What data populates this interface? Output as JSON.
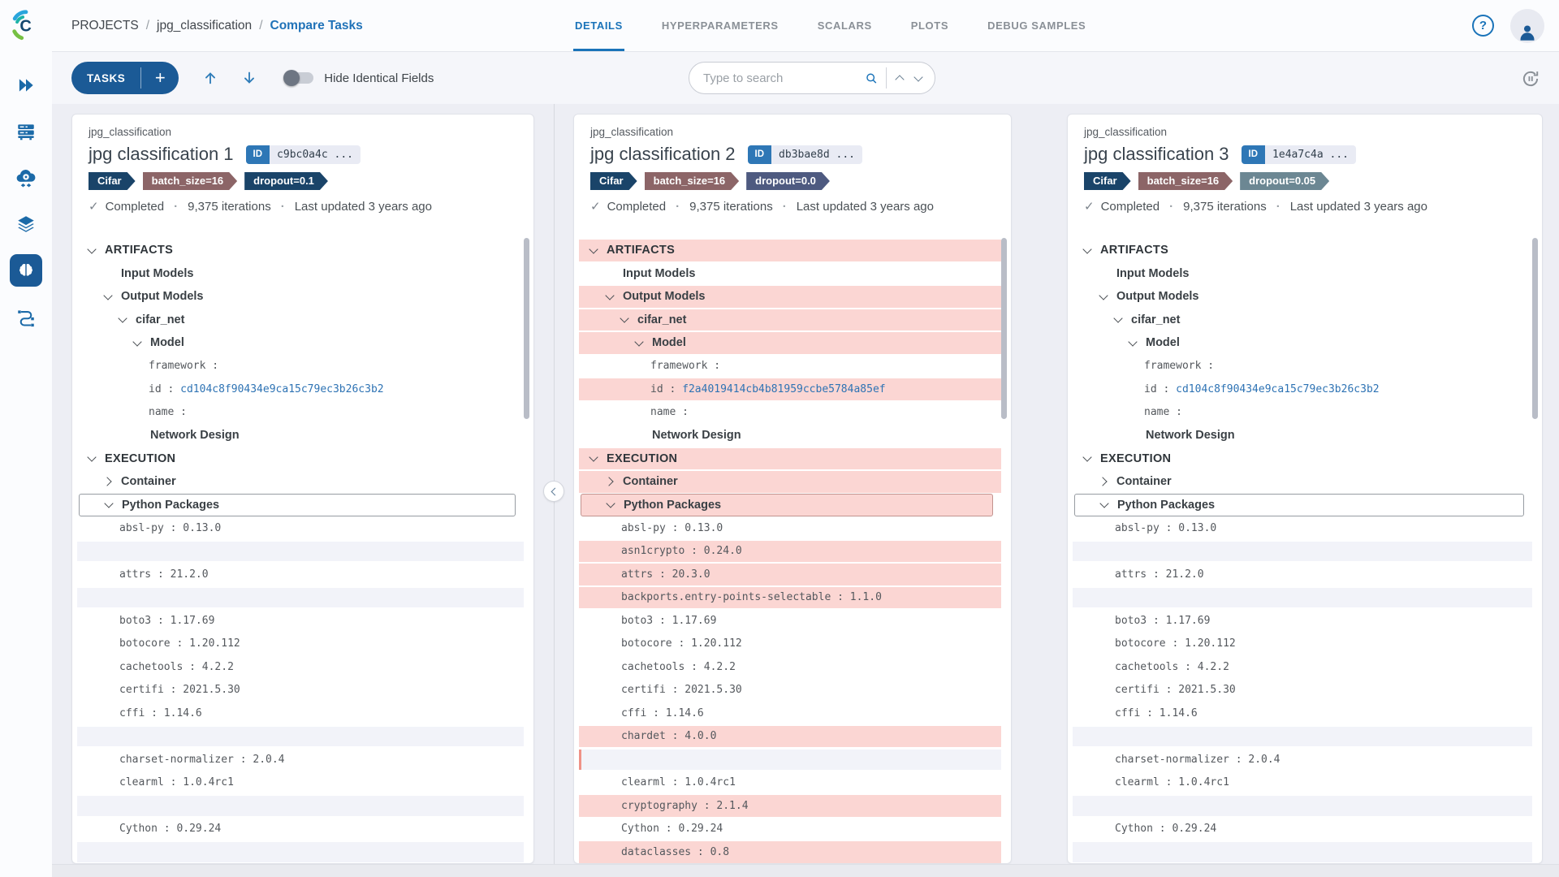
{
  "header": {
    "breadcrumb_separator": "/",
    "breadcrumb": [
      {
        "label": "PROJECTS"
      },
      {
        "label": "jpg_classification"
      },
      {
        "label": "Compare Tasks"
      }
    ],
    "tabs": [
      {
        "label": "DETAILS",
        "active": true
      },
      {
        "label": "HYPERPARAMETERS"
      },
      {
        "label": "SCALARS"
      },
      {
        "label": "PLOTS"
      },
      {
        "label": "DEBUG SAMPLES"
      }
    ]
  },
  "toolbar": {
    "tasks_button": "TASKS",
    "add_button": "+",
    "hide_identical_label": "Hide Identical Fields",
    "hide_identical_on": false,
    "search_placeholder": "Type to search"
  },
  "sidebar": {
    "icons": [
      "fast-forward-icon",
      "servers-icon",
      "cloud-workers-icon",
      "layers-icon",
      "brain-icon",
      "pipelines-icon"
    ],
    "active_icon": "brain-icon"
  },
  "colors": {
    "accent_blue": "#1a73b9",
    "button_navy": "#1b5a96",
    "diff_highlight": "#fbd6d3",
    "missing_row_highlight": "#f2f3f9",
    "missing_row_edge": "#ef9287",
    "link_blue": "#2e73b4"
  },
  "columns": [
    {
      "project": "jpg_classification",
      "title": "jpg classification 1",
      "id_label": "ID",
      "id_short": "c9bc0a4c ...",
      "tags": [
        {
          "label": "Cifar",
          "color": "#1a4469"
        },
        {
          "label": "batch_size=16",
          "color": "#8c6567"
        },
        {
          "label": "dropout=0.1",
          "color": "#1a4469"
        }
      ],
      "status": {
        "state": "Completed",
        "iterations": "9,375 iterations",
        "updated": "Last updated 3 years ago"
      },
      "tree": [
        {
          "t": "section",
          "label": "ARTIFACTS",
          "caret": "down"
        },
        {
          "t": "node",
          "label": "Input Models",
          "level": 1
        },
        {
          "t": "node",
          "label": "Output Models",
          "level": 1,
          "caret": "down"
        },
        {
          "t": "node",
          "label": "cifar_net",
          "level": 2,
          "caret": "down"
        },
        {
          "t": "node",
          "label": "Model",
          "level": 3,
          "caret": "down"
        },
        {
          "t": "kv",
          "key": "framework",
          "value": "",
          "level": 4
        },
        {
          "t": "kv",
          "key": "id",
          "value": "cd104c8f90434e9ca15c79ec3b26c3b2",
          "level": 4,
          "link": true
        },
        {
          "t": "kv",
          "key": "name",
          "value": "",
          "level": 4
        },
        {
          "t": "node",
          "label": "Network Design",
          "level": 3
        },
        {
          "t": "section",
          "label": "EXECUTION",
          "caret": "down"
        },
        {
          "t": "node",
          "label": "Container",
          "level": 1,
          "caret": "right"
        },
        {
          "t": "node",
          "label": "Python Packages",
          "level": 1,
          "caret": "down",
          "boxed": true
        },
        {
          "t": "kv",
          "key": "absl-py",
          "value": "0.13.0",
          "pkg": true
        },
        {
          "t": "empty"
        },
        {
          "t": "kv",
          "key": "attrs",
          "value": "21.2.0",
          "pkg": true
        },
        {
          "t": "empty"
        },
        {
          "t": "kv",
          "key": "boto3",
          "value": "1.17.69",
          "pkg": true
        },
        {
          "t": "kv",
          "key": "botocore",
          "value": "1.20.112",
          "pkg": true
        },
        {
          "t": "kv",
          "key": "cachetools",
          "value": "4.2.2",
          "pkg": true
        },
        {
          "t": "kv",
          "key": "certifi",
          "value": "2021.5.30",
          "pkg": true
        },
        {
          "t": "kv",
          "key": "cffi",
          "value": "1.14.6",
          "pkg": true
        },
        {
          "t": "empty"
        },
        {
          "t": "kv",
          "key": "charset-normalizer",
          "value": "2.0.4",
          "pkg": true
        },
        {
          "t": "kv",
          "key": "clearml",
          "value": "1.0.4rc1",
          "pkg": true
        },
        {
          "t": "empty"
        },
        {
          "t": "kv",
          "key": "Cython",
          "value": "0.29.24",
          "pkg": true
        },
        {
          "t": "empty"
        }
      ]
    },
    {
      "project": "jpg_classification",
      "title": "jpg classification 2",
      "id_label": "ID",
      "id_short": "db3bae8d ...",
      "tags": [
        {
          "label": "Cifar",
          "color": "#1a4469"
        },
        {
          "label": "batch_size=16",
          "color": "#8c6567"
        },
        {
          "label": "dropout=0.0",
          "color": "#4e5a80"
        }
      ],
      "status": {
        "state": "Completed",
        "iterations": "9,375 iterations",
        "updated": "Last updated 3 years ago"
      },
      "tree": [
        {
          "t": "section",
          "label": "ARTIFACTS",
          "caret": "down",
          "diff": true
        },
        {
          "t": "node",
          "label": "Input Models",
          "level": 1
        },
        {
          "t": "node",
          "label": "Output Models",
          "level": 1,
          "caret": "down",
          "diff": true
        },
        {
          "t": "node",
          "label": "cifar_net",
          "level": 2,
          "caret": "down",
          "diff": true
        },
        {
          "t": "node",
          "label": "Model",
          "level": 3,
          "caret": "down",
          "diff": true
        },
        {
          "t": "kv",
          "key": "framework",
          "value": "",
          "level": 4
        },
        {
          "t": "kv",
          "key": "id",
          "value": "f2a4019414cb4b81959ccbe5784a85ef",
          "level": 4,
          "link": true,
          "diff": true
        },
        {
          "t": "kv",
          "key": "name",
          "value": "",
          "level": 4
        },
        {
          "t": "node",
          "label": "Network Design",
          "level": 3
        },
        {
          "t": "section",
          "label": "EXECUTION",
          "caret": "down",
          "diff": true
        },
        {
          "t": "node",
          "label": "Container",
          "level": 1,
          "caret": "right",
          "diff": true
        },
        {
          "t": "node",
          "label": "Python Packages",
          "level": 1,
          "caret": "down",
          "boxed": true,
          "diff": true
        },
        {
          "t": "kv",
          "key": "absl-py",
          "value": "0.13.0",
          "pkg": true
        },
        {
          "t": "kv",
          "key": "asn1crypto",
          "value": "0.24.0",
          "pkg": true,
          "diff": true
        },
        {
          "t": "kv",
          "key": "attrs",
          "value": "20.3.0",
          "pkg": true,
          "diff": true
        },
        {
          "t": "kv",
          "key": "backports.entry-points-selectable",
          "value": "1.1.0",
          "pkg": true,
          "diff": true
        },
        {
          "t": "kv",
          "key": "boto3",
          "value": "1.17.69",
          "pkg": true
        },
        {
          "t": "kv",
          "key": "botocore",
          "value": "1.20.112",
          "pkg": true
        },
        {
          "t": "kv",
          "key": "cachetools",
          "value": "4.2.2",
          "pkg": true
        },
        {
          "t": "kv",
          "key": "certifi",
          "value": "2021.5.30",
          "pkg": true
        },
        {
          "t": "kv",
          "key": "cffi",
          "value": "1.14.6",
          "pkg": true
        },
        {
          "t": "kv",
          "key": "chardet",
          "value": "4.0.0",
          "pkg": true,
          "diff": true
        },
        {
          "t": "empty",
          "edge": true
        },
        {
          "t": "kv",
          "key": "clearml",
          "value": "1.0.4rc1",
          "pkg": true
        },
        {
          "t": "kv",
          "key": "cryptography",
          "value": "2.1.4",
          "pkg": true,
          "diff": true
        },
        {
          "t": "kv",
          "key": "Cython",
          "value": "0.29.24",
          "pkg": true
        },
        {
          "t": "kv",
          "key": "dataclasses",
          "value": "0.8",
          "pkg": true,
          "diff": true
        }
      ]
    },
    {
      "project": "jpg_classification",
      "title": "jpg classification 3",
      "id_label": "ID",
      "id_short": "1e4a7c4a ...",
      "tags": [
        {
          "label": "Cifar",
          "color": "#1a4469"
        },
        {
          "label": "batch_size=16",
          "color": "#8c6567"
        },
        {
          "label": "dropout=0.05",
          "color": "#6c8793"
        }
      ],
      "status": {
        "state": "Completed",
        "iterations": "9,375 iterations",
        "updated": "Last updated 3 years ago"
      },
      "tree": [
        {
          "t": "section",
          "label": "ARTIFACTS",
          "caret": "down"
        },
        {
          "t": "node",
          "label": "Input Models",
          "level": 1
        },
        {
          "t": "node",
          "label": "Output Models",
          "level": 1,
          "caret": "down"
        },
        {
          "t": "node",
          "label": "cifar_net",
          "level": 2,
          "caret": "down"
        },
        {
          "t": "node",
          "label": "Model",
          "level": 3,
          "caret": "down"
        },
        {
          "t": "kv",
          "key": "framework",
          "value": "",
          "level": 4
        },
        {
          "t": "kv",
          "key": "id",
          "value": "cd104c8f90434e9ca15c79ec3b26c3b2",
          "level": 4,
          "link": true
        },
        {
          "t": "kv",
          "key": "name",
          "value": "",
          "level": 4
        },
        {
          "t": "node",
          "label": "Network Design",
          "level": 3
        },
        {
          "t": "section",
          "label": "EXECUTION",
          "caret": "down"
        },
        {
          "t": "node",
          "label": "Container",
          "level": 1,
          "caret": "right"
        },
        {
          "t": "node",
          "label": "Python Packages",
          "level": 1,
          "caret": "down",
          "boxed": true
        },
        {
          "t": "kv",
          "key": "absl-py",
          "value": "0.13.0",
          "pkg": true
        },
        {
          "t": "empty"
        },
        {
          "t": "kv",
          "key": "attrs",
          "value": "21.2.0",
          "pkg": true
        },
        {
          "t": "empty"
        },
        {
          "t": "kv",
          "key": "boto3",
          "value": "1.17.69",
          "pkg": true
        },
        {
          "t": "kv",
          "key": "botocore",
          "value": "1.20.112",
          "pkg": true
        },
        {
          "t": "kv",
          "key": "cachetools",
          "value": "4.2.2",
          "pkg": true
        },
        {
          "t": "kv",
          "key": "certifi",
          "value": "2021.5.30",
          "pkg": true
        },
        {
          "t": "kv",
          "key": "cffi",
          "value": "1.14.6",
          "pkg": true
        },
        {
          "t": "empty"
        },
        {
          "t": "kv",
          "key": "charset-normalizer",
          "value": "2.0.4",
          "pkg": true
        },
        {
          "t": "kv",
          "key": "clearml",
          "value": "1.0.4rc1",
          "pkg": true
        },
        {
          "t": "empty"
        },
        {
          "t": "kv",
          "key": "Cython",
          "value": "0.29.24",
          "pkg": true
        },
        {
          "t": "empty"
        }
      ]
    }
  ]
}
